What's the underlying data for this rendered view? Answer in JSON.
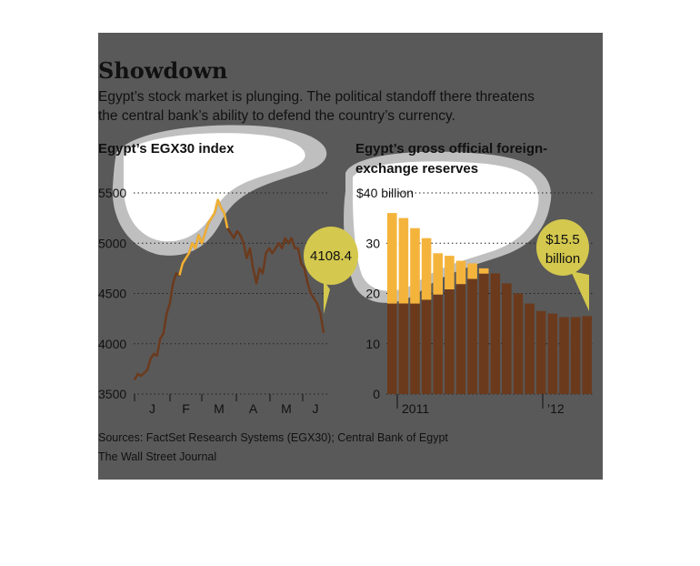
{
  "headline": "Showdown",
  "deck": [
    "Egypt’s stock market is plunging. The political standoff there threatens",
    "the central bank’s ability to defend the country’s currency."
  ],
  "sources": "Sources: FactSet Research Systems (EGX30); Central Bank of Egypt",
  "credit": "The Wall Street Journal",
  "colors": {
    "panel_bg": "#595959",
    "stock_line_dark": "#6b3a1d",
    "stock_line_light": "#f2b134",
    "bar_dark": "#6b3a1d",
    "bar_light": "#f4b43c",
    "callout_fill": "#d4c84e",
    "highlight_fill": "#ffffff",
    "highlight_halo": "#bfbfbf"
  },
  "chart_data": [
    {
      "type": "line",
      "title": "Egypt’s EGX30 index",
      "y_ticks": [
        "5500",
        "5000",
        "4500",
        "4000",
        "3500"
      ],
      "ylim": [
        3500,
        5500
      ],
      "x_ticks": [
        "J",
        "F",
        "M",
        "A",
        "M",
        "J"
      ],
      "x": [
        0,
        0.1,
        0.2,
        0.3,
        0.4,
        0.5,
        0.6,
        0.7,
        0.8,
        0.9,
        1.0,
        1.1,
        1.2,
        1.3,
        1.4,
        1.5,
        1.6,
        1.7,
        1.8,
        1.9,
        2.0,
        2.1,
        2.2,
        2.3,
        2.4,
        2.5,
        2.6,
        2.7,
        2.8,
        2.9,
        3.0,
        3.1,
        3.2,
        3.3,
        3.4,
        3.5,
        3.6,
        3.7,
        3.8,
        3.9,
        4.0,
        4.1,
        4.2,
        4.3,
        4.4,
        4.5,
        4.6,
        4.7,
        4.8,
        4.9,
        5.0,
        5.1,
        5.2,
        5.3,
        5.4,
        5.5,
        5.6,
        5.7,
        5.8,
        5.9
      ],
      "values": [
        3640,
        3700,
        3680,
        3710,
        3740,
        3850,
        3900,
        3880,
        4050,
        4100,
        4300,
        4400,
        4600,
        4700,
        4680,
        4800,
        4850,
        4900,
        5000,
        4950,
        5080,
        5000,
        5100,
        5200,
        5250,
        5300,
        5430,
        5350,
        5300,
        5150,
        5100,
        5050,
        5120,
        5080,
        5000,
        4850,
        4950,
        4750,
        4600,
        4750,
        4700,
        4900,
        4950,
        4900,
        4950,
        5000,
        4950,
        5050,
        5000,
        5050,
        4950,
        4950,
        4800,
        4750,
        4600,
        4500,
        4450,
        4400,
        4300,
        4108.4
      ],
      "latest_label": "4108.4"
    },
    {
      "type": "bar",
      "title": "Egypt’s gross official foreign-exchange reserves",
      "y_ticks": [
        "$40 billion",
        "30",
        "20",
        "10",
        "0"
      ],
      "ylim": [
        0,
        40
      ],
      "x_ticks": [
        "2011",
        "’12"
      ],
      "values": [
        36,
        35,
        33,
        31,
        28,
        27.5,
        26.5,
        26,
        25,
        24,
        22,
        20,
        18,
        16.5,
        16,
        15.3,
        15.3,
        15.5
      ],
      "latest_label": [
        "$15.5",
        "billion"
      ]
    }
  ]
}
